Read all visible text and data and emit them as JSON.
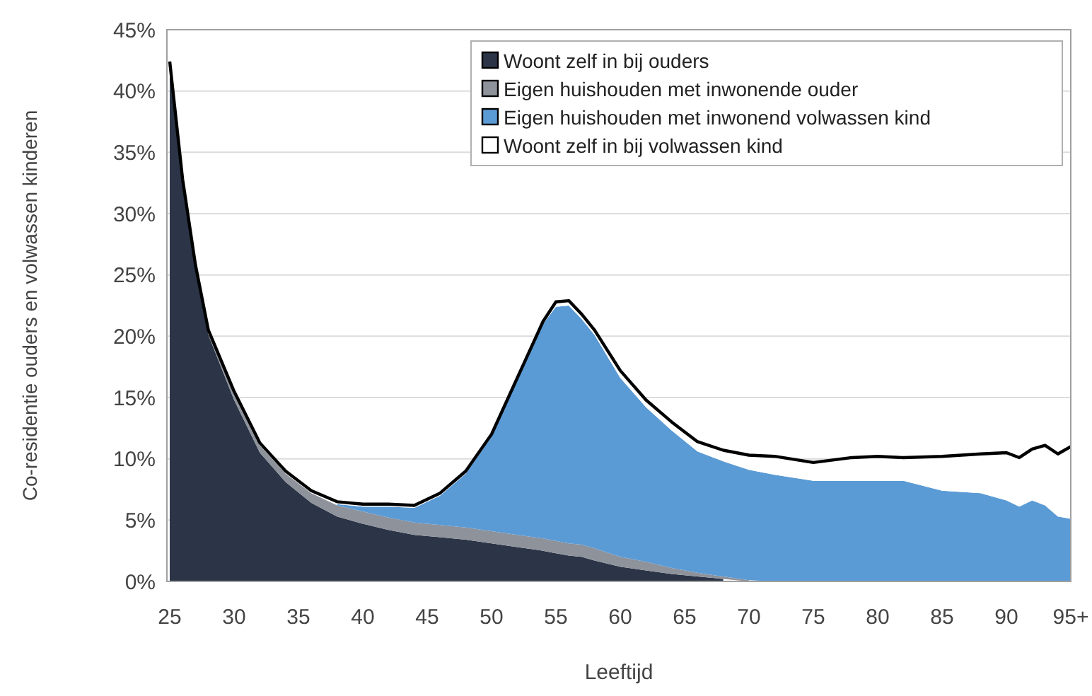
{
  "chart_data": {
    "type": "area",
    "stacked": true,
    "xlabel": "Leeftijd",
    "ylabel": "Co-residentie ouders en volwassen kinderen",
    "x": [
      25,
      26,
      27,
      28,
      30,
      32,
      34,
      36,
      38,
      40,
      42,
      44,
      46,
      48,
      50,
      52,
      54,
      55,
      56,
      57,
      58,
      60,
      62,
      64,
      66,
      68,
      70,
      72,
      75,
      78,
      80,
      82,
      85,
      88,
      90,
      91,
      92,
      93,
      94,
      95
    ],
    "series": [
      {
        "name": "Woont zelf in bij ouders",
        "color": "#2b3547",
        "values": [
          42.2,
          32.6,
          25.6,
          20.1,
          14.8,
          10.5,
          8.1,
          6.4,
          5.3,
          4.7,
          4.2,
          3.8,
          3.6,
          3.4,
          3.1,
          2.8,
          2.5,
          2.3,
          2.1,
          2.0,
          1.7,
          1.2,
          0.9,
          0.6,
          0.4,
          0.2,
          null,
          null,
          null,
          null,
          null,
          null,
          null,
          null,
          null,
          null,
          null,
          null,
          null,
          null
        ]
      },
      {
        "name": "Eigen huishouden met inwonende ouder",
        "color": "#8e929b",
        "values": [
          null,
          null,
          null,
          0.2,
          0.5,
          0.6,
          0.7,
          0.8,
          0.9,
          1.0,
          1.0,
          1.0,
          1.0,
          1.0,
          1.0,
          1.0,
          1.0,
          1.0,
          1.0,
          1.0,
          1.0,
          0.8,
          0.7,
          0.5,
          0.3,
          0.2,
          0.1,
          null,
          null,
          null,
          null,
          null,
          null,
          null,
          null,
          null,
          null,
          null,
          null,
          null
        ]
      },
      {
        "name": "Eigen huishouden met inwonend volwassen kind",
        "color": "#5b9bd5",
        "values": [
          null,
          null,
          null,
          null,
          null,
          null,
          null,
          null,
          0.1,
          0.4,
          0.9,
          1.2,
          2.4,
          4.4,
          7.7,
          12.6,
          17.5,
          19.1,
          19.4,
          18.4,
          17.4,
          14.6,
          12.6,
          11.2,
          9.9,
          9.4,
          9.0,
          8.7,
          8.2,
          8.2,
          8.2,
          8.2,
          7.4,
          7.2,
          6.6,
          6.1,
          6.6,
          6.2,
          5.3,
          5.1
        ]
      },
      {
        "name": "Woont zelf in bij volwassen kind",
        "color": "#ffffff",
        "values": [
          0.2,
          0.2,
          0.2,
          0.2,
          0.2,
          0.2,
          0.2,
          0.2,
          0.2,
          0.2,
          0.2,
          0.2,
          0.2,
          0.2,
          0.2,
          0.2,
          0.2,
          0.4,
          0.4,
          0.4,
          0.4,
          0.6,
          0.6,
          0.7,
          0.8,
          0.9,
          1.2,
          1.5,
          1.5,
          1.9,
          2.0,
          1.9,
          2.8,
          3.2,
          3.9,
          4.0,
          4.2,
          4.9,
          5.1,
          5.9
        ]
      }
    ],
    "xlim": [
      25,
      95
    ],
    "xticks": [
      25,
      30,
      35,
      40,
      45,
      50,
      55,
      60,
      65,
      70,
      75,
      80,
      85,
      90,
      {
        "value": 95,
        "label": "95+"
      }
    ],
    "ylim": [
      0,
      45
    ],
    "yticks": [
      {
        "value": 0,
        "label": "0%"
      },
      {
        "value": 5,
        "label": "5%"
      },
      {
        "value": 10,
        "label": "10%"
      },
      {
        "value": 15,
        "label": "15%"
      },
      {
        "value": 20,
        "label": "20%"
      },
      {
        "value": 25,
        "label": "25%"
      },
      {
        "value": 30,
        "label": "30%"
      },
      {
        "value": 35,
        "label": "35%"
      },
      {
        "value": 40,
        "label": "40%"
      },
      {
        "value": 45,
        "label": "45%"
      }
    ],
    "grid": "y",
    "legend": "top right",
    "line_style": "solid"
  }
}
